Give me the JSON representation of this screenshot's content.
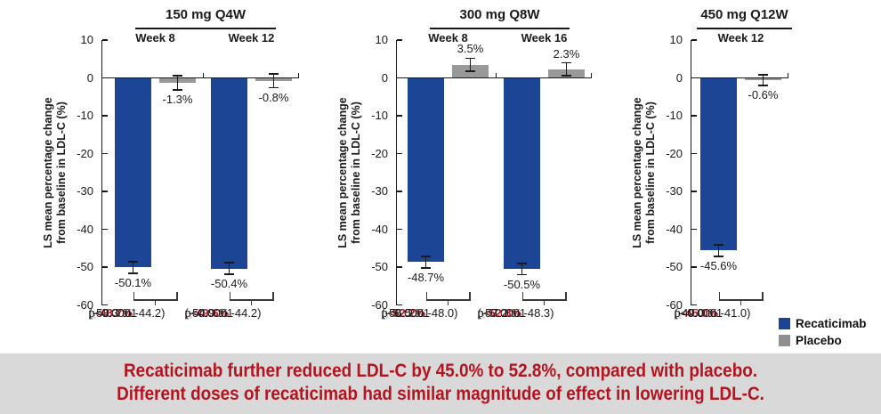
{
  "chart_data": {
    "type": "bar",
    "ylabel_line1": "LS mean percentage change",
    "ylabel_line2": "from baseline in LDL-C (%)",
    "ylim": [
      -60,
      10
    ],
    "yticks": [
      10,
      0,
      -10,
      -20,
      -30,
      -40,
      -50,
      -60
    ],
    "grid": false,
    "legend_position": "bottom-right",
    "series_names": [
      "Recaticimab",
      "Placebo"
    ],
    "panels": [
      {
        "title": "150 mg Q4W",
        "groups": [
          {
            "week": "Week 8",
            "bars": [
              {
                "series": "Recaticimab",
                "value": -50.1,
                "label": "-50.1%",
                "err": 1.5
              },
              {
                "series": "Placebo",
                "value": -1.3,
                "label": "-1.3%",
                "err": 1.8
              }
            ],
            "difference": {
              "triangle": "△",
              "delta": "-48.7%",
              "ci": "(-53.3 to -44.2)",
              "p": "p<0.0001"
            }
          },
          {
            "week": "Week 12",
            "bars": [
              {
                "series": "Recaticimab",
                "value": -50.4,
                "label": "-50.4%",
                "err": 1.5
              },
              {
                "series": "Placebo",
                "value": -0.8,
                "label": "-0.8%",
                "err": 1.8
              }
            ],
            "difference": {
              "triangle": "△",
              "delta": "-49.6%",
              "ci": "(-54.9 to -44.2)",
              "p": "p<0.0001"
            }
          }
        ]
      },
      {
        "title": "300 mg Q8W",
        "groups": [
          {
            "week": "Week 8",
            "bars": [
              {
                "series": "Recaticimab",
                "value": -48.7,
                "label": "-48.7%",
                "err": 1.5
              },
              {
                "series": "Placebo",
                "value": 3.5,
                "label": "3.5%",
                "err": 1.7
              }
            ],
            "difference": {
              "triangle": "△",
              "delta": "-52.2%",
              "ci": "(-56.5 to -48.0)",
              "p": "p<0.0001"
            }
          },
          {
            "week": "Week 16",
            "bars": [
              {
                "series": "Recaticimab",
                "value": -50.5,
                "label": "-50.5%",
                "err": 1.5
              },
              {
                "series": "Placebo",
                "value": 2.3,
                "label": "2.3%",
                "err": 1.7
              }
            ],
            "difference": {
              "triangle": "△",
              "delta": "-52.8%",
              "ci": "(-57.2 to -48.3)",
              "p": "p<0.0001"
            }
          }
        ]
      },
      {
        "title": "450 mg Q12W",
        "groups": [
          {
            "week": "Week 12",
            "bars": [
              {
                "series": "Recaticimab",
                "value": -45.6,
                "label": "-45.6%",
                "err": 1.5
              },
              {
                "series": "Placebo",
                "value": -0.6,
                "label": "-0.6%",
                "err": 1.4
              }
            ],
            "difference": {
              "triangle": "△",
              "delta": "-45.0%",
              "ci": "(-49.0 to -41.0)",
              "p": "p<0.0001"
            }
          }
        ]
      }
    ]
  },
  "legend": {
    "items": [
      {
        "label": "Recaticimab",
        "color": "#1c4596"
      },
      {
        "label": "Placebo",
        "color": "#8f8f8f"
      }
    ]
  },
  "banner": {
    "line1": "Recaticimab further reduced LDL-C by 45.0% to 52.8%, compared with placebo.",
    "line2": "Different doses of recaticimab had similar magnitude of effect in lowering LDL-C."
  },
  "colors": {
    "recaticimab_bar": "#1c4596",
    "placebo_bar": "#999999",
    "axis": "#1a1a1a",
    "delta_red": "#c0121f",
    "triangle_gray": "#a8a8a8",
    "banner_text": "#b4141f",
    "banner_bg": "#d9d9d9"
  }
}
